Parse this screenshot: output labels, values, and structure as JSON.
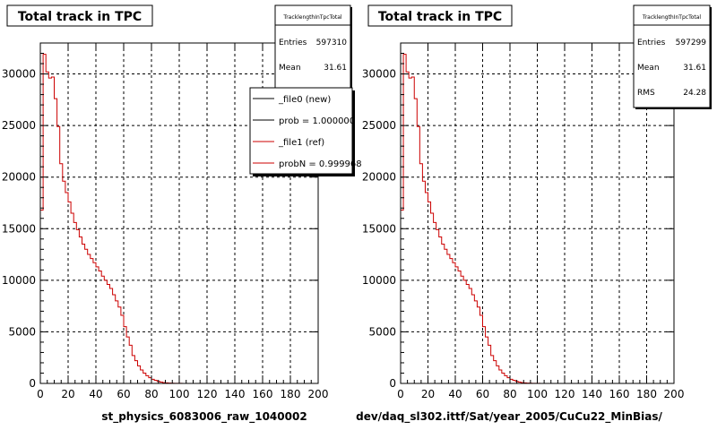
{
  "chart_data": [
    {
      "type": "histogram",
      "title": "Total track in TPC",
      "xlabel": "st_physics_6083006_raw_1040002",
      "xlim": [
        0,
        200
      ],
      "ylim": [
        0,
        33000
      ],
      "x_ticks": [
        0,
        20,
        40,
        60,
        80,
        100,
        120,
        140,
        160,
        180,
        200
      ],
      "y_ticks": [
        0,
        5000,
        10000,
        15000,
        20000,
        25000,
        30000
      ],
      "grid": true,
      "stats": {
        "name": "TracklengthInTpcTotal",
        "rows": [
          {
            "label": "Entries",
            "value": "597310"
          },
          {
            "label": "Mean",
            "value": "31.61"
          }
        ]
      },
      "legend": {
        "placement": "top-right",
        "entries": [
          {
            "label": "_file0 (new)",
            "color": "#000000"
          },
          {
            "label": "prob = 1.000000",
            "color": "#000000"
          },
          {
            "label": "_file1 (ref)",
            "color": "#cc0000"
          },
          {
            "label": "probN = 0.999968",
            "color": "#cc0000"
          }
        ]
      },
      "series": [
        {
          "color": "#cc0000",
          "bin_edges": [
            0,
            2,
            4,
            6,
            8,
            10,
            12,
            14,
            16,
            18,
            20,
            22,
            24,
            26,
            28,
            30,
            32,
            34,
            36,
            38,
            40,
            42,
            44,
            46,
            48,
            50,
            52,
            54,
            56,
            58,
            60,
            62,
            64,
            66,
            68,
            70,
            72,
            74,
            76,
            78,
            80,
            82,
            84,
            86,
            88,
            90,
            92,
            94,
            96,
            98,
            100,
            102,
            104,
            106,
            108,
            110,
            112,
            114,
            116,
            118,
            120,
            122,
            124,
            126,
            128,
            130,
            132,
            134,
            136
          ],
          "counts": [
            16800,
            31900,
            30200,
            29600,
            29700,
            27600,
            24900,
            21300,
            19600,
            18500,
            17600,
            16500,
            15600,
            14900,
            14200,
            13500,
            13000,
            12500,
            12100,
            11700,
            11300,
            10900,
            10400,
            10000,
            9600,
            9200,
            8600,
            8000,
            7400,
            6600,
            5500,
            4500,
            3700,
            2700,
            2200,
            1700,
            1300,
            1000,
            750,
            550,
            400,
            300,
            200,
            130,
            80,
            50,
            35,
            25,
            15,
            10,
            6,
            4,
            3,
            2,
            1,
            1,
            0,
            0,
            0,
            0,
            0,
            0,
            0,
            0,
            0,
            0,
            0,
            0
          ]
        }
      ]
    },
    {
      "type": "histogram",
      "title": "Total track in TPC",
      "xlabel": "dev/daq_sl302.ittf/Sat/year_2005/CuCu22_MinBias/",
      "xlim": [
        0,
        200
      ],
      "ylim": [
        0,
        33000
      ],
      "x_ticks": [
        0,
        20,
        40,
        60,
        80,
        100,
        120,
        140,
        160,
        180,
        200
      ],
      "y_ticks": [
        0,
        5000,
        10000,
        15000,
        20000,
        25000,
        30000
      ],
      "grid": true,
      "stats": {
        "name": "TracklengthInTpcTotal",
        "rows": [
          {
            "label": "Entries",
            "value": "597299"
          },
          {
            "label": "Mean",
            "value": "31.61"
          },
          {
            "label": "RMS",
            "value": "24.28"
          }
        ]
      },
      "series": [
        {
          "color": "#cc0000",
          "bin_edges": [
            0,
            2,
            4,
            6,
            8,
            10,
            12,
            14,
            16,
            18,
            20,
            22,
            24,
            26,
            28,
            30,
            32,
            34,
            36,
            38,
            40,
            42,
            44,
            46,
            48,
            50,
            52,
            54,
            56,
            58,
            60,
            62,
            64,
            66,
            68,
            70,
            72,
            74,
            76,
            78,
            80,
            82,
            84,
            86,
            88,
            90,
            92,
            94,
            96,
            98,
            100,
            102,
            104,
            106,
            108,
            110,
            112,
            114,
            116,
            118,
            120,
            122,
            124,
            126,
            128,
            130,
            132,
            134,
            136
          ],
          "counts": [
            16800,
            31900,
            30200,
            29600,
            29700,
            27600,
            24900,
            21300,
            19600,
            18500,
            17600,
            16500,
            15600,
            14900,
            14200,
            13500,
            13000,
            12500,
            12100,
            11700,
            11300,
            10900,
            10400,
            10000,
            9600,
            9200,
            8600,
            8000,
            7400,
            6600,
            5500,
            4500,
            3700,
            2700,
            2200,
            1700,
            1300,
            1000,
            750,
            550,
            400,
            300,
            200,
            130,
            80,
            50,
            35,
            25,
            15,
            10,
            6,
            4,
            3,
            2,
            1,
            1,
            0,
            0,
            0,
            0,
            0,
            0,
            0,
            0,
            0,
            0,
            0,
            0
          ]
        }
      ]
    }
  ]
}
